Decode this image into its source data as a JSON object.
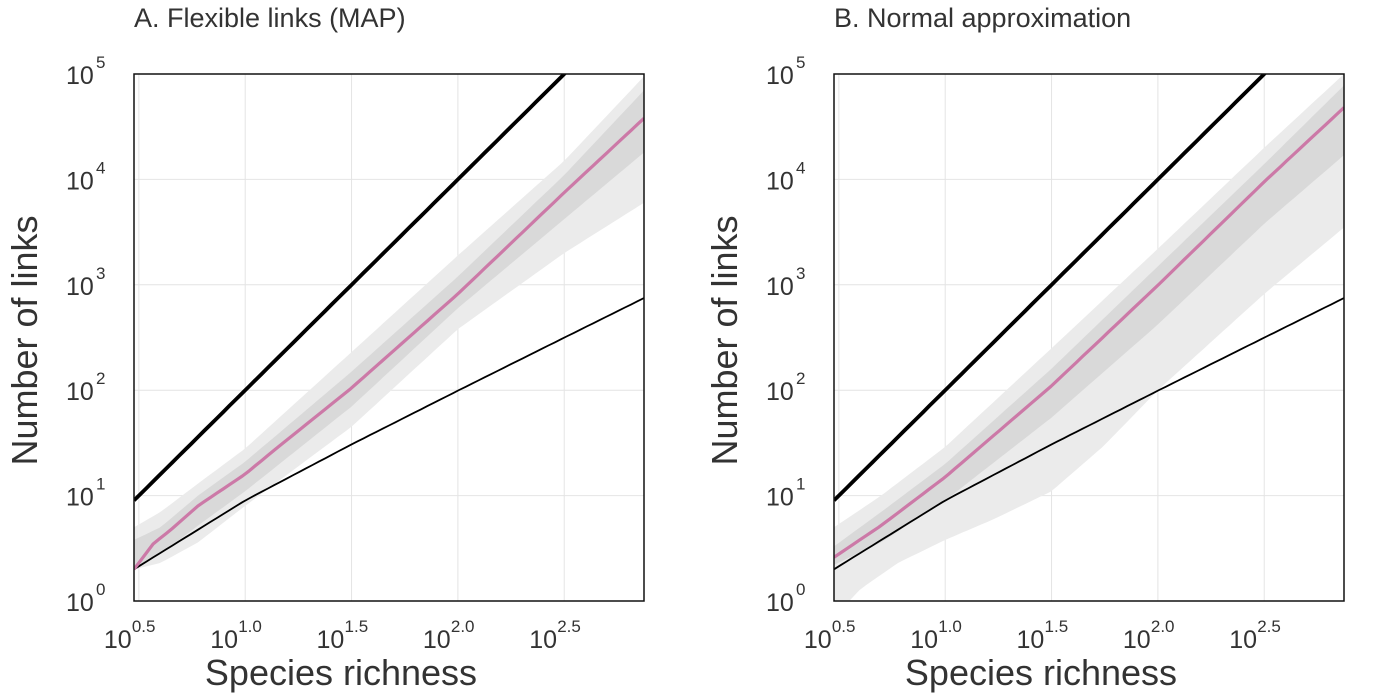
{
  "chart_data": [
    {
      "type": "line",
      "title": "A. Flexible links (MAP)",
      "xlabel": "Species richness",
      "ylabel": "Number of links",
      "xscale": "log10",
      "yscale": "log10",
      "xlim": [
        3,
        750
      ],
      "ylim": [
        1,
        100000
      ],
      "xticks": [
        {
          "base": "10",
          "exp": "0.5",
          "value": 3.162
        },
        {
          "base": "10",
          "exp": "1.0",
          "value": 10
        },
        {
          "base": "10",
          "exp": "1.5",
          "value": 31.62
        },
        {
          "base": "10",
          "exp": "2.0",
          "value": 100
        },
        {
          "base": "10",
          "exp": "2.5",
          "value": 316.2
        }
      ],
      "yticks": [
        {
          "base": "10",
          "exp": "0",
          "value": 1
        },
        {
          "base": "10",
          "exp": "1",
          "value": 10
        },
        {
          "base": "10",
          "exp": "2",
          "value": 100
        },
        {
          "base": "10",
          "exp": "3",
          "value": 1000
        },
        {
          "base": "10",
          "exp": "4",
          "value": 10000
        },
        {
          "base": "10",
          "exp": "5",
          "value": 100000
        }
      ],
      "grid": true,
      "legend": "none",
      "colors": {
        "median": "#cc79a7",
        "band_outer": "#ebebeb",
        "band_inner": "#d9d9d9",
        "bounds": "#000000"
      },
      "series": [
        {
          "role": "upper bound (S^2)",
          "x": [
            3,
            10,
            31.62,
            100,
            316.2
          ],
          "y": [
            9,
            100,
            1000,
            10000,
            100000
          ]
        },
        {
          "role": "lower bound (S-1)",
          "x": [
            3,
            10,
            31.62,
            100,
            316.2,
            750
          ],
          "y": [
            2,
            9,
            30.6,
            99,
            315.2,
            749
          ]
        },
        {
          "role": "median",
          "x": [
            3,
            3.7,
            4.5,
            6,
            10,
            14,
            31.62,
            100,
            316.2,
            750
          ],
          "y": [
            2,
            3.5,
            4.8,
            8,
            16,
            28,
            105,
            820,
            7500,
            38000
          ]
        },
        {
          "role": "outer band low",
          "x": [
            3,
            4,
            6,
            10,
            31.62,
            100,
            316.2,
            750
          ],
          "y": [
            2,
            2.3,
            3.6,
            8,
            45,
            380,
            2000,
            6000
          ]
        },
        {
          "role": "outer band high",
          "x": [
            3,
            4,
            6,
            10,
            31.62,
            100,
            316.2,
            750
          ],
          "y": [
            5,
            7,
            13,
            28,
            230,
            1900,
            15000,
            95000
          ]
        },
        {
          "role": "inner band low",
          "x": [
            3,
            4,
            6,
            10,
            31.62,
            100,
            316.2,
            750
          ],
          "y": [
            2.1,
            2.8,
            5.2,
            11,
            70,
            600,
            4200,
            18000
          ]
        },
        {
          "role": "inner band high",
          "x": [
            3,
            4,
            6,
            10,
            31.62,
            100,
            316.2,
            750
          ],
          "y": [
            3.8,
            5,
            10,
            21,
            150,
            1200,
            11000,
            70000
          ]
        }
      ]
    },
    {
      "type": "line",
      "title": "B. Normal approximation",
      "xlabel": "Species richness",
      "ylabel": "Number of links",
      "xscale": "log10",
      "yscale": "log10",
      "xlim": [
        3,
        750
      ],
      "ylim": [
        1,
        100000
      ],
      "xticks": [
        {
          "base": "10",
          "exp": "0.5",
          "value": 3.162
        },
        {
          "base": "10",
          "exp": "1.0",
          "value": 10
        },
        {
          "base": "10",
          "exp": "1.5",
          "value": 31.62
        },
        {
          "base": "10",
          "exp": "2.0",
          "value": 100
        },
        {
          "base": "10",
          "exp": "2.5",
          "value": 316.2
        }
      ],
      "yticks": [
        {
          "base": "10",
          "exp": "0",
          "value": 1
        },
        {
          "base": "10",
          "exp": "1",
          "value": 10
        },
        {
          "base": "10",
          "exp": "2",
          "value": 100
        },
        {
          "base": "10",
          "exp": "3",
          "value": 1000
        },
        {
          "base": "10",
          "exp": "4",
          "value": 10000
        },
        {
          "base": "10",
          "exp": "5",
          "value": 100000
        }
      ],
      "grid": true,
      "legend": "none",
      "colors": {
        "median": "#cc79a7",
        "band_outer": "#ebebeb",
        "band_inner": "#d9d9d9",
        "bounds": "#000000"
      },
      "series": [
        {
          "role": "upper bound (S^2)",
          "x": [
            3,
            10,
            31.62,
            100,
            316.2
          ],
          "y": [
            9,
            100,
            1000,
            10000,
            100000
          ]
        },
        {
          "role": "lower bound (S-1)",
          "x": [
            3,
            10,
            31.62,
            100,
            316.2,
            750
          ],
          "y": [
            2,
            9,
            30.6,
            99,
            315.2,
            749
          ]
        },
        {
          "role": "median",
          "x": [
            3,
            5,
            10,
            31.62,
            100,
            316.2,
            750
          ],
          "y": [
            2.6,
            5.2,
            15,
            110,
            990,
            9500,
            48000
          ]
        },
        {
          "role": "outer band low",
          "x": [
            3,
            4,
            6,
            10,
            17,
            31.62,
            56,
            100,
            316.2,
            750
          ],
          "y": [
            0.7,
            1.3,
            2.3,
            3.8,
            6,
            11,
            30,
            100,
            820,
            3500
          ]
        },
        {
          "role": "outer band high",
          "x": [
            3,
            5,
            10,
            31.62,
            100,
            316.2,
            750
          ],
          "y": [
            5,
            10,
            29,
            250,
            2200,
            20000,
            100000
          ]
        },
        {
          "role": "inner band low",
          "x": [
            3,
            5,
            10,
            31.62,
            100,
            316.2,
            750
          ],
          "y": [
            2.2,
            3.6,
            9,
            55,
            420,
            3800,
            17000
          ]
        },
        {
          "role": "inner band high",
          "x": [
            3,
            5,
            10,
            31.62,
            100,
            316.2,
            750
          ],
          "y": [
            3.3,
            7,
            20,
            160,
            1500,
            14000,
            78000
          ]
        }
      ]
    }
  ]
}
